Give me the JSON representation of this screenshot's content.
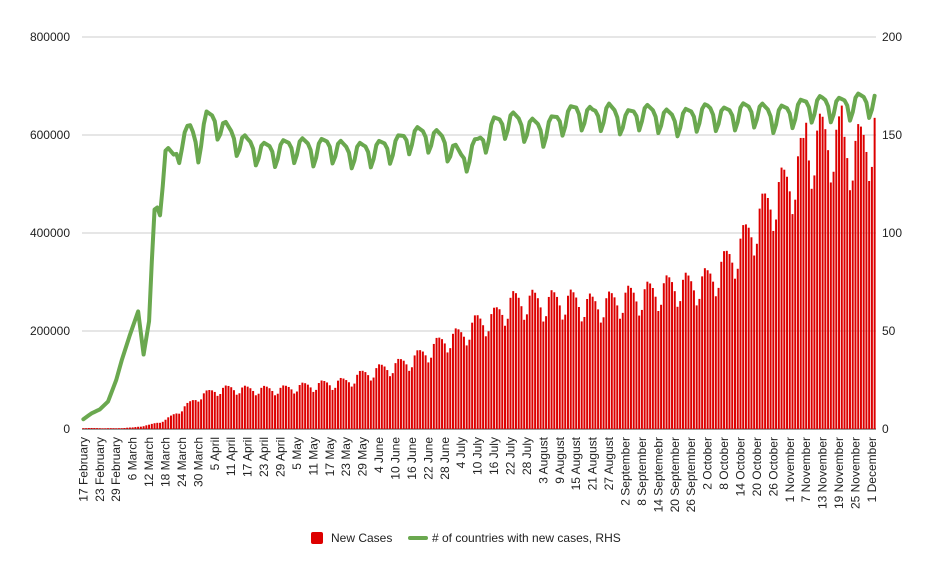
{
  "chart_data": {
    "type": "bar",
    "start_date": "2020-02-17",
    "end_date": "2020-12-02",
    "x_tick_labels": [
      "17 February",
      "23 February",
      "29 February",
      "6 March",
      "12 March",
      "18 March",
      "24 March",
      "30 March",
      "5 April",
      "11 April",
      "17 April",
      "23 April",
      "29 April",
      "5 May",
      "11 May",
      "17 May",
      "23 May",
      "29 May",
      "4 June",
      "10 June",
      "16 June",
      "22 June",
      "28 June",
      "4 July",
      "10 July",
      "16 July",
      "22 July",
      "28 July",
      "3 August",
      "9 August",
      "15 August",
      "21 August",
      "27 August",
      "2 September",
      "8 September",
      "14 Septemebr",
      "20 September",
      "26 September",
      "2 October",
      "8 October",
      "14 October",
      "20 October",
      "26 October",
      "1 November",
      "7 November",
      "13 November",
      "19 November",
      "25 November",
      "1 December"
    ],
    "y_left": {
      "ticks": [
        "0",
        "200000",
        "400000",
        "600000",
        "800000"
      ],
      "ylim": [
        0,
        800000
      ]
    },
    "y_right": {
      "ticks": [
        "0",
        "50",
        "100",
        "150",
        "200"
      ],
      "ylim": [
        0,
        200
      ]
    },
    "grid": true,
    "legend_position": "bottom",
    "series": [
      {
        "name": "New Cases",
        "kind": "bar",
        "axis": "left",
        "color": "#dd0000",
        "anchors": [
          [
            "2020-02-17",
            2000
          ],
          [
            "2020-02-29",
            1500
          ],
          [
            "2020-03-06",
            3000
          ],
          [
            "2020-03-12",
            8000
          ],
          [
            "2020-03-18",
            18000
          ],
          [
            "2020-03-24",
            40000
          ],
          [
            "2020-03-30",
            65000
          ],
          [
            "2020-04-05",
            78000
          ],
          [
            "2020-04-11",
            82000
          ],
          [
            "2020-04-17",
            80000
          ],
          [
            "2020-04-23",
            80000
          ],
          [
            "2020-04-29",
            80000
          ],
          [
            "2020-05-05",
            85000
          ],
          [
            "2020-05-11",
            88000
          ],
          [
            "2020-05-17",
            92000
          ],
          [
            "2020-05-23",
            96000
          ],
          [
            "2020-05-29",
            110000
          ],
          [
            "2020-06-04",
            120000
          ],
          [
            "2020-06-10",
            128000
          ],
          [
            "2020-06-16",
            140000
          ],
          [
            "2020-06-22",
            158000
          ],
          [
            "2020-06-28",
            180000
          ],
          [
            "2020-07-04",
            190000
          ],
          [
            "2020-07-10",
            215000
          ],
          [
            "2020-07-16",
            225000
          ],
          [
            "2020-07-22",
            255000
          ],
          [
            "2020-07-28",
            260000
          ],
          [
            "2020-08-03",
            255000
          ],
          [
            "2020-08-09",
            260000
          ],
          [
            "2020-08-15",
            258000
          ],
          [
            "2020-08-21",
            250000
          ],
          [
            "2020-08-27",
            255000
          ],
          [
            "2020-09-02",
            265000
          ],
          [
            "2020-09-08",
            270000
          ],
          [
            "2020-09-14",
            280000
          ],
          [
            "2020-09-20",
            290000
          ],
          [
            "2020-09-26",
            290000
          ],
          [
            "2020-10-02",
            300000
          ],
          [
            "2020-10-08",
            330000
          ],
          [
            "2020-10-14",
            370000
          ],
          [
            "2020-10-20",
            420000
          ],
          [
            "2020-10-26",
            470000
          ],
          [
            "2020-11-01",
            500000
          ],
          [
            "2020-11-07",
            560000
          ],
          [
            "2020-11-13",
            590000
          ],
          [
            "2020-11-19",
            580000
          ],
          [
            "2020-11-25",
            560000
          ],
          [
            "2020-12-02",
            600000
          ]
        ],
        "weekly_dip": [
          0.86,
          0.9,
          1.05,
          1.1,
          1.08,
          1.04,
          0.97
        ],
        "peaks": [
          [
            "2020-11-07",
            625000
          ],
          [
            "2020-11-20",
            660000
          ],
          [
            "2020-12-02",
            635000
          ]
        ]
      },
      {
        "name": "# of countries with new cases, RHS",
        "kind": "line",
        "axis": "right",
        "color": "#6aa84f",
        "anchors": [
          [
            "2020-02-17",
            5
          ],
          [
            "2020-02-20",
            8
          ],
          [
            "2020-02-23",
            10
          ],
          [
            "2020-02-26",
            14
          ],
          [
            "2020-02-29",
            25
          ],
          [
            "2020-03-02",
            35
          ],
          [
            "2020-03-05",
            48
          ],
          [
            "2020-03-08",
            60
          ],
          [
            "2020-03-10",
            38
          ],
          [
            "2020-03-12",
            55
          ],
          [
            "2020-03-14",
            110
          ],
          [
            "2020-03-16",
            118
          ],
          [
            "2020-03-18",
            140
          ],
          [
            "2020-03-21",
            138
          ],
          [
            "2020-03-24",
            148
          ],
          [
            "2020-03-27",
            152
          ],
          [
            "2020-03-30",
            145
          ],
          [
            "2020-04-02",
            158
          ],
          [
            "2020-04-05",
            158
          ],
          [
            "2020-04-11",
            150
          ],
          [
            "2020-04-17",
            145
          ],
          [
            "2020-04-23",
            142
          ],
          [
            "2020-04-29",
            143
          ],
          [
            "2020-05-05",
            145
          ],
          [
            "2020-05-11",
            143
          ],
          [
            "2020-05-17",
            145
          ],
          [
            "2020-05-23",
            142
          ],
          [
            "2020-05-29",
            142
          ],
          [
            "2020-06-04",
            143
          ],
          [
            "2020-06-10",
            145
          ],
          [
            "2020-06-16",
            150
          ],
          [
            "2020-06-22",
            150
          ],
          [
            "2020-06-28",
            147
          ],
          [
            "2020-07-04",
            138
          ],
          [
            "2020-07-10",
            145
          ],
          [
            "2020-07-16",
            155
          ],
          [
            "2020-07-22",
            158
          ],
          [
            "2020-07-28",
            155
          ],
          [
            "2020-08-03",
            153
          ],
          [
            "2020-08-09",
            158
          ],
          [
            "2020-08-15",
            162
          ],
          [
            "2020-08-21",
            160
          ],
          [
            "2020-08-27",
            162
          ],
          [
            "2020-09-02",
            158
          ],
          [
            "2020-09-08",
            162
          ],
          [
            "2020-09-14",
            160
          ],
          [
            "2020-09-20",
            158
          ],
          [
            "2020-09-26",
            160
          ],
          [
            "2020-10-02",
            162
          ],
          [
            "2020-10-08",
            160
          ],
          [
            "2020-10-14",
            162
          ],
          [
            "2020-10-20",
            163
          ],
          [
            "2020-10-26",
            160
          ],
          [
            "2020-11-01",
            162
          ],
          [
            "2020-11-07",
            165
          ],
          [
            "2020-11-13",
            166
          ],
          [
            "2020-11-19",
            165
          ],
          [
            "2020-11-25",
            167
          ],
          [
            "2020-12-02",
            168
          ]
        ],
        "weekly_dip": [
          -9,
          -5,
          2,
          4,
          3,
          2,
          -1
        ]
      }
    ]
  }
}
